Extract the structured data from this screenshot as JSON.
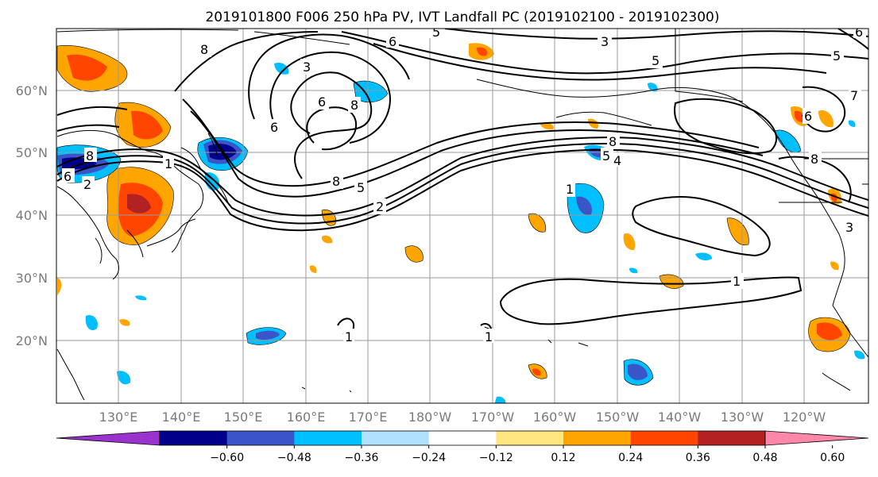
{
  "title": "2019101800 F006 250 hPa PV, IVT Landfall PC (2019102100 - 2019102300)",
  "lat_labels": [
    "60°N",
    "50°N",
    "40°N",
    "30°N",
    "20°N"
  ],
  "lon_labels": [
    "130°E",
    "140°E",
    "150°E",
    "160°E",
    "170°E",
    "180°W",
    "170°W",
    "160°W",
    "150°W",
    "140°W",
    "130°W",
    "120°W"
  ],
  "colorbar": {
    "ticks": [
      "−0.60",
      "−0.48",
      "−0.36",
      "−0.24",
      "−0.12",
      "0.12",
      "0.24",
      "0.36",
      "0.48",
      "0.60"
    ],
    "colors": [
      "#9933cc",
      "#00008b",
      "#3a55c8",
      "#00bfff",
      "#b0e0ff",
      "#ffffff",
      "#ffe680",
      "#ffa500",
      "#ff4500",
      "#b22222",
      "#ff88aa"
    ]
  },
  "contour_labels": [
    "8",
    "3",
    "6",
    "5",
    "3",
    "5",
    "6",
    "8",
    "6",
    "8",
    "5",
    "2",
    "1",
    "8",
    "6",
    "2",
    "1",
    "8",
    "5",
    "4",
    "6",
    "7",
    "8",
    "3",
    "5",
    "1",
    "1",
    "1",
    "6"
  ]
}
